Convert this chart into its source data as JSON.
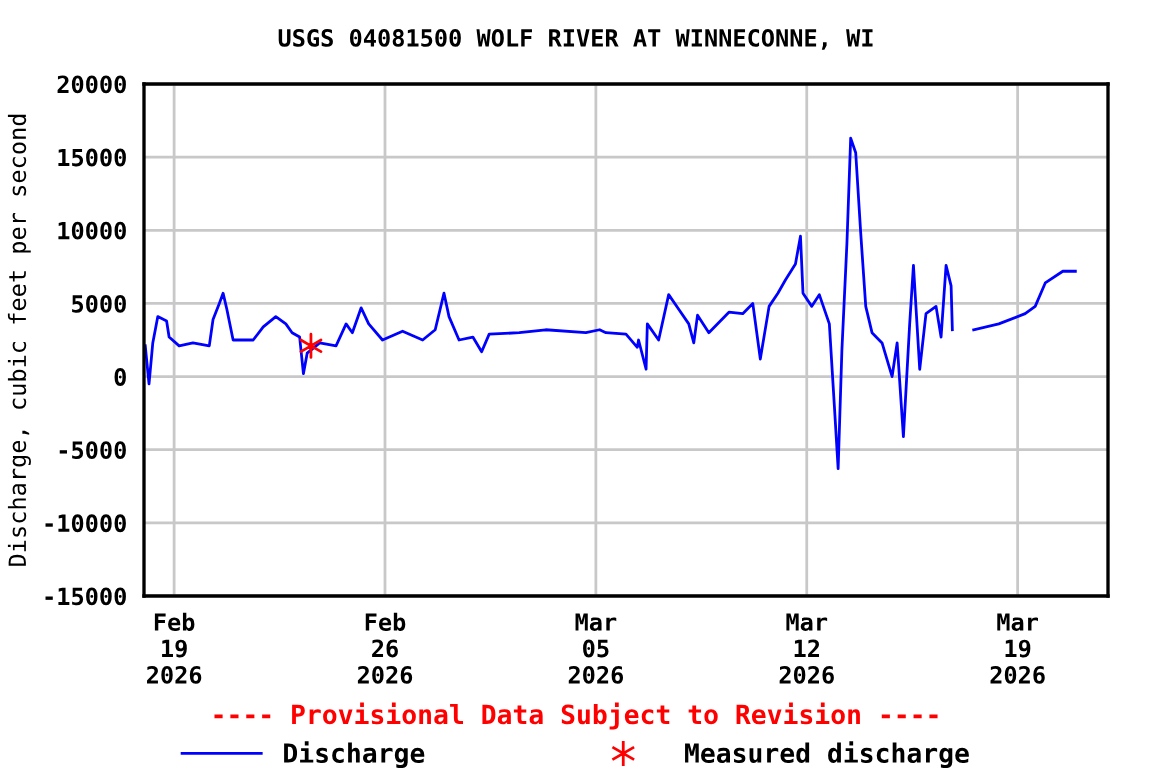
{
  "chart_data": {
    "type": "line",
    "title": "USGS 04081500 WOLF RIVER AT WINNECONNE, WI",
    "ylabel": "Discharge, cubic feet per second",
    "annotations": [
      "---- Provisional Data Subject to Revision ----"
    ],
    "xlim": [
      "2026-02-18T00:00",
      "2026-03-22T00:00"
    ],
    "xticks": [
      {
        "value": "2026-02-19",
        "label": "Feb\n19\n2026"
      },
      {
        "value": "2026-02-26",
        "label": "Feb\n26\n2026"
      },
      {
        "value": "2026-03-05",
        "label": "Mar\n05\n2026"
      },
      {
        "value": "2026-03-12",
        "label": "Mar\n12\n2026"
      },
      {
        "value": "2026-03-19",
        "label": "Mar\n19\n2026"
      }
    ],
    "ylim": [
      -15000,
      20000
    ],
    "yticks": [
      -15000,
      -10000,
      -5000,
      0,
      5000,
      10000,
      15000,
      20000
    ],
    "grid": true,
    "legend": "bottom",
    "series": [
      {
        "name": "Discharge",
        "color": "#0000ff",
        "marker": "none",
        "x": [
          "2026-02-18T01:00",
          "2026-02-18T04:00",
          "2026-02-18T07:00",
          "2026-02-18T11:00",
          "2026-02-18T18:00",
          "2026-02-18T20:00",
          "2026-02-19T04:00",
          "2026-02-19T15:00",
          "2026-02-20T04:00",
          "2026-02-20T07:00",
          "2026-02-20T12:00",
          "2026-02-20T15:00",
          "2026-02-20T18:00",
          "2026-02-20T23:00",
          "2026-02-21T15:00",
          "2026-02-21T23:00",
          "2026-02-22T09:00",
          "2026-02-22T17:00",
          "2026-02-22T22:00",
          "2026-02-23T04:00",
          "2026-02-23T07:00",
          "2026-02-23T10:00",
          "2026-02-23T20:00",
          "2026-02-24T09:00",
          "2026-02-24T17:00",
          "2026-02-24T22:00",
          "2026-02-25T05:00",
          "2026-02-25T11:00",
          "2026-02-25T22:00",
          "2026-02-26T14:00",
          "2026-02-27T06:00",
          "2026-02-27T16:00",
          "2026-02-27T23:00",
          "2026-02-28T03:00",
          "2026-02-28T11:00",
          "2026-02-28T22:00",
          "2026-03-01T05:00",
          "2026-03-01T11:00",
          "2026-03-02T11:00",
          "2026-03-03T08:00",
          "2026-03-04T16:00",
          "2026-03-05T03:00",
          "2026-03-05T08:00",
          "2026-03-06T00:00",
          "2026-03-06T09:00",
          "2026-03-06T10:00",
          "2026-03-06T16:00",
          "2026-03-06T17:00",
          "2026-03-07T02:00",
          "2026-03-07T10:00",
          "2026-03-07T18:00",
          "2026-03-08T02:00",
          "2026-03-08T06:00",
          "2026-03-08T09:00",
          "2026-03-08T18:00",
          "2026-03-09T10:00",
          "2026-03-09T21:00",
          "2026-03-10T05:00",
          "2026-03-10T11:00",
          "2026-03-10T18:00",
          "2026-03-11T01:00",
          "2026-03-11T07:00",
          "2026-03-11T15:00",
          "2026-03-11T19:00",
          "2026-03-11T21:00",
          "2026-03-12T04:00",
          "2026-03-12T10:00",
          "2026-03-12T18:00",
          "2026-03-12T22:00",
          "2026-03-13T01:00",
          "2026-03-13T04:00",
          "2026-03-13T08:00",
          "2026-03-13T11:00",
          "2026-03-13T15:00",
          "2026-03-13T19:00",
          "2026-03-13T23:00",
          "2026-03-14T04:00",
          "2026-03-14T12:00",
          "2026-03-14T20:00",
          "2026-03-15T00:00",
          "2026-03-15T05:00",
          "2026-03-15T10:00",
          "2026-03-15T13:00",
          "2026-03-15T18:00",
          "2026-03-15T23:00",
          "2026-03-16T07:00",
          "2026-03-16T11:00",
          "2026-03-16T15:00",
          "2026-03-16T19:00",
          "2026-03-16T20:00",
          "2026-03-17T00:00",
          "2026-03-17T13:00",
          "2026-03-18T09:00",
          "2026-03-19T06:00",
          "2026-03-19T14:00",
          "2026-03-19T22:00",
          "2026-03-20T12:00",
          "2026-03-20T22:00"
        ],
        "values": [
          2100,
          -500,
          2300,
          4100,
          3800,
          2700,
          2100,
          2300,
          2100,
          3900,
          5000,
          5700,
          4600,
          2500,
          2500,
          3400,
          4100,
          3600,
          3000,
          2700,
          200,
          1600,
          2300,
          2100,
          3600,
          3000,
          4700,
          3600,
          2500,
          3100,
          2500,
          3200,
          5700,
          4100,
          2500,
          2700,
          1700,
          2900,
          3000,
          3200,
          3000,
          3200,
          3000,
          2900,
          2000,
          2500,
          500,
          3600,
          2500,
          5600,
          4600,
          3600,
          2300,
          4200,
          3000,
          4400,
          4300,
          5000,
          1200,
          4800,
          5700,
          6600,
          7700,
          9600,
          5700,
          4800,
          5600,
          3600,
          -2000,
          -6300,
          1800,
          9100,
          16300,
          15300,
          9800,
          4800,
          3000,
          2300,
          0,
          2300,
          -4100,
          3600,
          7600,
          500,
          4300,
          4800,
          2700,
          7600,
          6200,
          3200,
          null,
          3200,
          3600,
          4300,
          4800,
          6400,
          7200,
          7200
        ]
      },
      {
        "name": "Measured discharge",
        "type": "scatter",
        "color": "#ff0000",
        "marker": "cross",
        "x": [
          "2026-02-23T13:00"
        ],
        "values": [
          2100
        ]
      }
    ]
  }
}
